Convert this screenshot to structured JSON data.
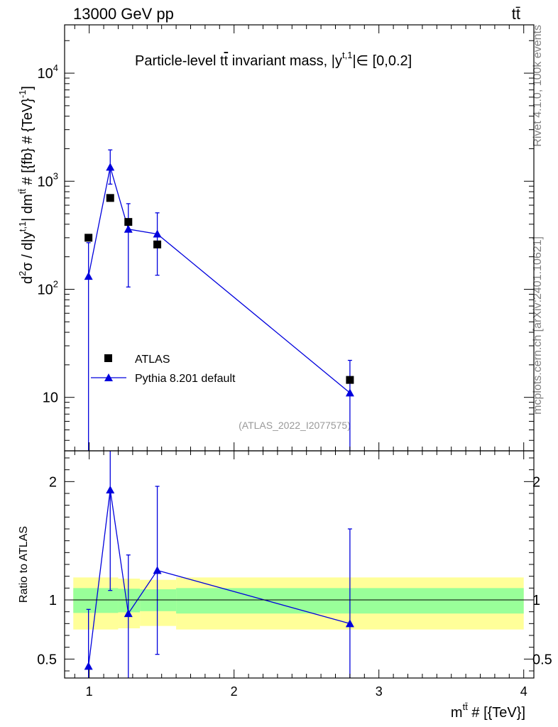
{
  "header": {
    "left": "13000 GeV pp",
    "right": "tt̄"
  },
  "side_labels": {
    "rivet": "Rivet 4.1.0,  100k events",
    "mcplots": "mcplots.cern.ch [arXiv:2401.10621]"
  },
  "colors": {
    "atlas": "#000000",
    "pythia": "#0000dd",
    "band_inner": "#99ff99",
    "band_outer": "#ffff99"
  },
  "chart_data": [
    {
      "type": "scatter",
      "title": "Particle-level tt̄ invariant mass, |y^{t,1}| ∈ [0,0.2]",
      "title_parts": {
        "main": "Particle-level t",
        "tbar": "t",
        "rest": " invariant mass, |y",
        "sup": "t,1",
        "end": "|∈ [0,0.2]"
      },
      "ylabel": "d²σ / d|y^{t,1}| dm^{tt̄} # [{fb} # {TeV}^{-1}]",
      "ylabel_parts": {
        "a": "d",
        "b": "2",
        "c": "σ / d|y",
        "d": "t,1",
        "e": "| dm",
        "f": "tt̄",
        "g": " # [{fb} # {TeV}",
        "h": "-1",
        "i": "]"
      },
      "yscale": "log",
      "ylim": [
        3.2,
        28000
      ],
      "xlim": [
        0.83,
        4.07
      ],
      "y_ticks": [
        {
          "value": 10,
          "label": "10"
        },
        {
          "value": 100,
          "label": "10",
          "sup": "2"
        },
        {
          "value": 1000,
          "label": "10",
          "sup": "3"
        },
        {
          "value": 10000,
          "label": "10",
          "sup": "4"
        }
      ],
      "watermark": "(ATLAS_2022_I2077575)",
      "legend": [
        {
          "name": "ATLAS",
          "marker": "square"
        },
        {
          "name": "Pythia 8.201 default",
          "marker": "triangle"
        }
      ],
      "series": [
        {
          "name": "ATLAS",
          "x": [
            0.995,
            1.145,
            1.27,
            1.47,
            2.8
          ],
          "y": [
            300,
            700,
            420,
            260,
            14.5
          ]
        },
        {
          "name": "Pythia 8.201 default",
          "x": [
            0.995,
            1.145,
            1.27,
            1.47,
            2.8
          ],
          "y": [
            132,
            1350,
            360,
            325,
            11
          ],
          "y_low": [
            3.2,
            940,
            105,
            135,
            3.2
          ],
          "y_high": [
            270,
            1950,
            620,
            510,
            22
          ]
        }
      ]
    },
    {
      "type": "scatter",
      "ylabel": "Ratio to ATLAS",
      "xlabel": "m^{tt̄} # [{TeV}]",
      "xlabel_parts": {
        "a": "m",
        "b": "tt̄",
        "c": " # [{TeV}]"
      },
      "xlim": [
        0.83,
        4.07
      ],
      "ylim": [
        0.34,
        2.26
      ],
      "x_ticks": [
        1,
        2,
        3,
        4
      ],
      "y_ticks": [
        0.5,
        1,
        2
      ],
      "bands": [
        {
          "x_from": 0.89,
          "x_to": 1.07,
          "inner": [
            0.89,
            1.1
          ],
          "outer": [
            0.75,
            1.19
          ]
        },
        {
          "x_from": 1.07,
          "x_to": 1.2,
          "inner": [
            0.89,
            1.1
          ],
          "outer": [
            0.75,
            1.19
          ]
        },
        {
          "x_from": 1.2,
          "x_to": 1.35,
          "inner": [
            0.895,
            1.095
          ],
          "outer": [
            0.76,
            1.18
          ]
        },
        {
          "x_from": 1.35,
          "x_to": 1.6,
          "inner": [
            0.905,
            1.09
          ],
          "outer": [
            0.78,
            1.17
          ]
        },
        {
          "x_from": 1.6,
          "x_to": 4.0,
          "inner": [
            0.885,
            1.1
          ],
          "outer": [
            0.75,
            1.19
          ]
        }
      ],
      "series": [
        {
          "name": "Pythia 8.201 default",
          "x": [
            0.995,
            1.145,
            1.27,
            1.47,
            2.8
          ],
          "y": [
            0.44,
            1.93,
            0.885,
            1.25,
            0.8
          ],
          "y_low": [
            0.34,
            1.08,
            0.34,
            0.54,
            0.34
          ],
          "y_high": [
            0.92,
            2.26,
            1.38,
            1.96,
            1.6
          ]
        }
      ]
    }
  ]
}
